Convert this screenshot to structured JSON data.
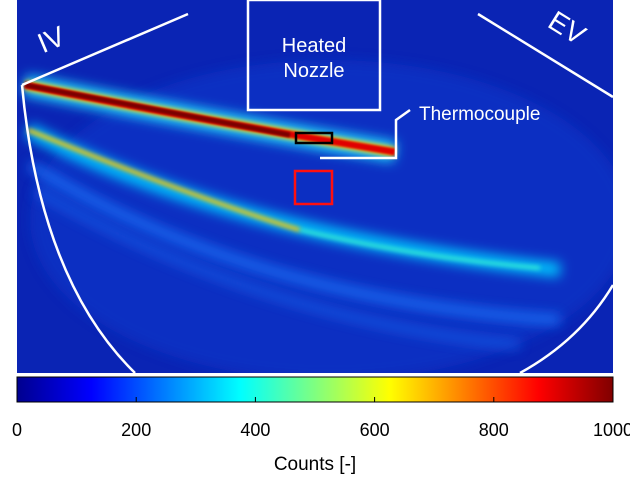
{
  "image": {
    "labels": {
      "iv": "IV",
      "ev": "EV",
      "nozzle": "Heated Nozzle",
      "thermocouple": "Thermocouple"
    }
  },
  "chart_data": {
    "type": "colorbar",
    "lim": [
      0,
      1000
    ],
    "ticks": [
      0,
      200,
      400,
      600,
      800,
      1000
    ],
    "label": "Counts [-]"
  }
}
